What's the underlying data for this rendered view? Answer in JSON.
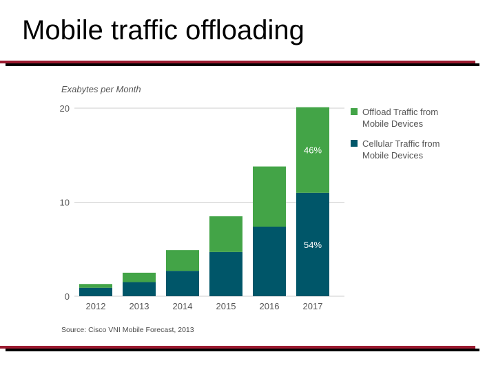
{
  "slide": {
    "title": "Mobile traffic offloading",
    "rule_colors": {
      "red": "#9b1b30",
      "black": "#000000"
    }
  },
  "chart_data": {
    "type": "bar",
    "stacked": true,
    "ylabel": "Exabytes per Month",
    "ylim": [
      0,
      20
    ],
    "yticks": [
      0,
      10,
      20
    ],
    "categories": [
      "2012",
      "2013",
      "2014",
      "2015",
      "2016",
      "2017"
    ],
    "series": [
      {
        "name": "Cellular Traffic from Mobile Devices",
        "color": "#005669",
        "values": [
          0.9,
          1.5,
          2.7,
          4.7,
          7.4,
          11.0
        ]
      },
      {
        "name": "Offload Traffic from Mobile Devices",
        "color": "#43a447",
        "values": [
          0.4,
          1.0,
          2.2,
          3.8,
          6.4,
          9.1
        ]
      }
    ],
    "annotations": [
      {
        "category": "2017",
        "series": "Offload Traffic from Mobile Devices",
        "text": "46%"
      },
      {
        "category": "2017",
        "series": "Cellular Traffic from Mobile Devices",
        "text": "54%"
      }
    ],
    "legend": {
      "placement": "right",
      "entries": [
        {
          "line1": "Offload Traffic from",
          "line2": "Mobile Devices",
          "color": "#43a447"
        },
        {
          "line1": "Cellular Traffic from",
          "line2": "Mobile Devices",
          "color": "#005669"
        }
      ]
    },
    "grid": true,
    "source": "Source: Cisco VNI Mobile Forecast, 2013"
  }
}
